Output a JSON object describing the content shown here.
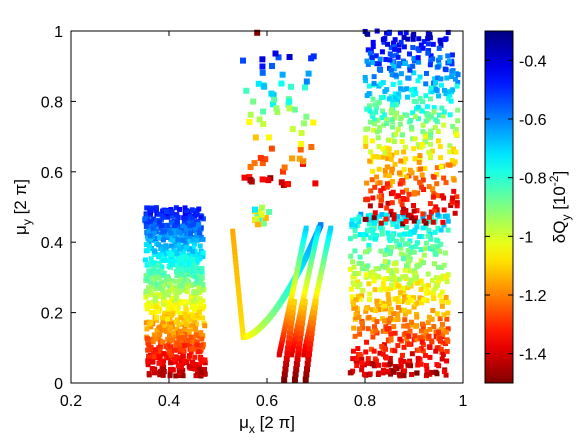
{
  "chart_data": {
    "type": "scatter",
    "title": "",
    "xlabel": {
      "main": "μ",
      "sub": "x",
      "rest": " [2 π]"
    },
    "ylabel": {
      "main": "μ",
      "sub": "y",
      "rest": " [2 π]"
    },
    "xlim": [
      0.2,
      1
    ],
    "ylim": [
      0,
      1
    ],
    "xticks": [
      "0.2",
      "0.4",
      "0.6",
      "0.8",
      "1"
    ],
    "yticks": [
      "0",
      "0.2",
      "0.4",
      "0.6",
      "0.8",
      "1"
    ],
    "grid": false,
    "marker": "square",
    "colorbar": {
      "label": {
        "main": "δQ",
        "sub": "y",
        "rest": " [10",
        "sup": "-2",
        "close": "]"
      },
      "range": [
        -1.5,
        -0.3
      ],
      "ticks": [
        "-0.4",
        "-0.6",
        "-0.8",
        "-1",
        "-1.2",
        "-1.4"
      ],
      "tick_values": [
        -0.4,
        -0.6,
        -0.8,
        -1.0,
        -1.2,
        -1.4
      ],
      "colormap": "jet",
      "colors": [
        "#7f0000",
        "#ff0000",
        "#ff8000",
        "#ffff00",
        "#80ff80",
        "#00ffff",
        "#0080ff",
        "#0000ff",
        "#00007f"
      ]
    },
    "regions": [
      {
        "name": "left block",
        "x": [
          0.35,
          0.47
        ],
        "y": [
          0.02,
          0.5
        ],
        "color_top": -0.45,
        "color_bottom": -1.45
      },
      {
        "name": "central curve",
        "x": [
          0.53,
          0.72
        ],
        "y": [
          0.12,
          0.45
        ],
        "color_range": [
          -1.2,
          -0.6
        ]
      },
      {
        "name": "red streaks",
        "x": [
          0.62,
          0.67
        ],
        "y": [
          0.0,
          0.35
        ],
        "color_range": [
          -1.5,
          -1.0
        ]
      },
      {
        "name": "upper-middle scatter",
        "x": [
          0.55,
          0.7
        ],
        "y": [
          0.55,
          0.95
        ],
        "color_top": -0.45,
        "color_bottom": -1.45
      },
      {
        "name": "right-lower block",
        "x": [
          0.77,
          0.97
        ],
        "y": [
          0.02,
          0.48
        ],
        "color_top": -0.7,
        "color_bottom": -1.45
      },
      {
        "name": "right-upper block",
        "x": [
          0.8,
          0.99
        ],
        "y": [
          0.45,
          1.0
        ],
        "color_top": -0.4,
        "color_bottom": -1.45
      }
    ]
  }
}
